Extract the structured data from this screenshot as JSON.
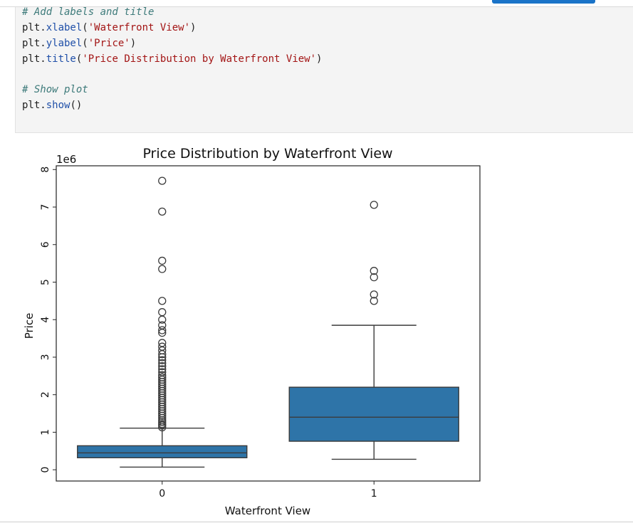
{
  "code_cell": {
    "comment_labels": "# Add labels and title",
    "xlabel_prefix": "plt.",
    "xlabel_fn": "xlabel",
    "xlabel_open": "(",
    "xlabel_arg": "'Waterfront View'",
    "xlabel_close": ")",
    "ylabel_prefix": "plt.",
    "ylabel_fn": "ylabel",
    "ylabel_open": "(",
    "ylabel_arg": "'Price'",
    "ylabel_close": ")",
    "title_prefix": "plt.",
    "title_fn": "title",
    "title_open": "(",
    "title_arg": "'Price Distribution by Waterfront View'",
    "title_close": ")",
    "comment_show": "# Show plot",
    "show_prefix": "plt.",
    "show_fn": "show",
    "show_suffix": "()"
  },
  "chart_data": {
    "type": "box",
    "title": "Price Distribution by Waterfront View",
    "xlabel": "Waterfront View",
    "ylabel": "Price",
    "offset_label": "1e6",
    "ylim": [
      -0.3,
      8.1
    ],
    "yticks": [
      0,
      1,
      2,
      3,
      4,
      5,
      6,
      7,
      8
    ],
    "ytick_labels": [
      "0",
      "1",
      "2",
      "3",
      "4",
      "5",
      "6",
      "7",
      "8"
    ],
    "categories": [
      "0",
      "1"
    ],
    "box_color": "#2e74a8",
    "grid": false,
    "boxes": [
      {
        "category": "0",
        "whisker_low": 0.07,
        "q1": 0.32,
        "median": 0.45,
        "q3": 0.64,
        "whisker_high": 1.11,
        "outliers": [
          1.13,
          1.18,
          1.22,
          1.27,
          1.32,
          1.38,
          1.44,
          1.5,
          1.56,
          1.62,
          1.68,
          1.74,
          1.8,
          1.86,
          1.92,
          1.98,
          2.04,
          2.1,
          2.16,
          2.22,
          2.28,
          2.34,
          2.4,
          2.46,
          2.52,
          2.6,
          2.68,
          2.76,
          2.84,
          2.92,
          3.0,
          3.08,
          3.18,
          3.28,
          3.38,
          3.65,
          3.72,
          3.85,
          4.0,
          4.2,
          4.5,
          5.35,
          5.57,
          6.88,
          7.7
        ]
      },
      {
        "category": "1",
        "whisker_low": 0.28,
        "q1": 0.76,
        "median": 1.4,
        "q3": 2.2,
        "whisker_high": 3.85,
        "outliers": [
          4.5,
          4.67,
          5.13,
          5.3,
          7.06
        ]
      }
    ]
  }
}
